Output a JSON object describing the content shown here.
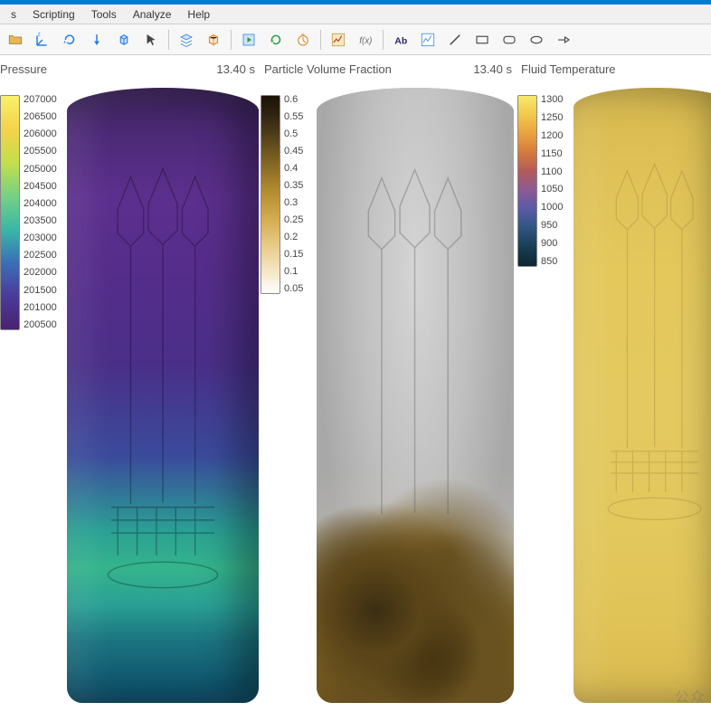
{
  "menus": {
    "s1": "s",
    "scripting": "Scripting",
    "tools": "Tools",
    "analyze": "Analyze",
    "help": "Help"
  },
  "toolbar_icons": [
    "folder",
    "axes",
    "rotate",
    "arrow",
    "cube-rot",
    "cursor",
    "sep",
    "layers",
    "cube-export",
    "sep",
    "box-play",
    "refresh",
    "timer",
    "sep",
    "chart",
    "fx",
    "sep",
    "label",
    "line-chart",
    "diag",
    "rect",
    "ellipse",
    "circle",
    "arrow-shape"
  ],
  "time_value": "13.40 s",
  "panels": {
    "pressure": {
      "title": "Pressure",
      "legend_values": [
        "207000",
        "206500",
        "206000",
        "205500",
        "205000",
        "204500",
        "204000",
        "203500",
        "203000",
        "202500",
        "202000",
        "201500",
        "201000",
        "200500"
      ],
      "gradient": "linear-gradient(to bottom,#f9f06b,#f4d34a,#c3df4c,#77d183,#3ab8a7,#3a6fb7,#4b3a9b,#4a2270)",
      "fill": "linear-gradient(to top,#0a4a66 0%,#1b7380 10%,#2aa094 16%,#34b48c 22%,#2aa094 28%,#3a4b9b 40%,#4a2f88 55%,#552d8a 70%,#5c2f8e 82%,#4d2a78 92%,#3a2258 100%)"
    },
    "pvf": {
      "title": "Particle Volume Fraction",
      "legend_values": [
        "0.6",
        "0.55",
        "0.5",
        "0.45",
        "0.4",
        "0.35",
        "0.3",
        "0.25",
        "0.2",
        "0.15",
        "0.1",
        "0.05"
      ],
      "gradient": "linear-gradient(to bottom,#1a1308,#2e2310,#4a3a18,#6b531f,#8a6c26,#aa852d,#c39a3b,#d6ae55,#e4c37a,#efd7a3,#f7eacd,#ffffff)",
      "fill_top": "radial-gradient(ellipse at 50% 30%, #d5d5d5 0%, #bfbfbf 40%, #a8a8a8 70%)",
      "dust": "radial-gradient(circle at 30% 85%, #3a2e12 0%, #5a4418 8%, transparent 20%),radial-gradient(circle at 55% 92%, #2d2108 0%, #6a5220 10%, transparent 22%),radial-gradient(circle at 75% 88%, #4a3a18 0%, transparent 18%),radial-gradient(circle at 45% 78%, #8a6c26 0%, transparent 14%),radial-gradient(circle at 65% 76%, #6b531f 0%, transparent 16%),radial-gradient(circle at 20% 80%, #5a4418 0%, transparent 14%),linear-gradient(to top,#6b531f 0%,#8a6c26 6%,#aa852d 12%, rgba(200,180,130,0.5) 22%, rgba(210,200,180,0.2) 30%, transparent 38%)"
    },
    "ft": {
      "title": "Fluid Temperature",
      "legend_values": [
        "1300",
        "1250",
        "1200",
        "1150",
        "1100",
        "1050",
        "1000",
        "950",
        "900",
        "850"
      ],
      "gradient": "linear-gradient(to bottom,#f7e96b,#f1c94d,#e9a13f,#d57a3c,#b25a5a,#8b5a95,#5a5aa8,#2f5580,#1a3d52,#0d2633)",
      "fill": "linear-gradient(to top,#d9b94f 0%,#e1c458 15%,#e3c85e 30%,#e4c960 50%,#e4c85c 70%,#e0c258 85%,#d7b84e 100%)"
    }
  },
  "watermark": "公众"
}
